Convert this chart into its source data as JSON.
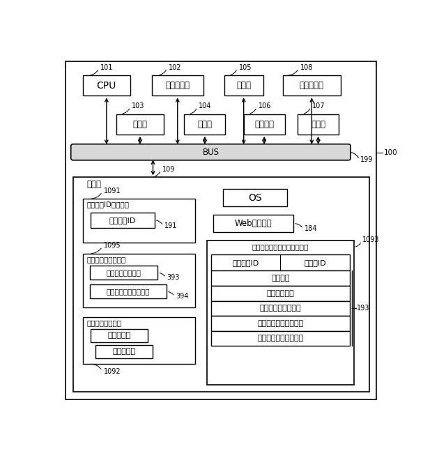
{
  "fig_width": 6.4,
  "fig_height": 6.57,
  "bg_color": "#ffffff",
  "labels": {
    "101": "CPU",
    "102": "入力検知部",
    "105": "マイク",
    "108": "無線通信部",
    "103": "表示部",
    "104": "カメラ",
    "106": "スピーカ",
    "107": "電源部",
    "bus": "BUS",
    "memory": "記憶部",
    "os_label": "OS",
    "web": "Webブラウザ",
    "device_id_area": "デバイスID格納領域",
    "device_id_box": "デバイスID",
    "content_area": "コンテンツ格納領域",
    "content_data": "コンテンツデータ",
    "content_mgmt": "コンテンツ管理データ",
    "viewer_area": "ビュワー格納領域",
    "viewer1": "ビュワー１",
    "viewer2": "ビュワー２",
    "app_area": "電子書籍管理アプリ格納領域",
    "device_id2": "デバイスID",
    "user_id": "ユーザID",
    "mgmt": "管理機能",
    "reg": "登録設定機能",
    "get_content": "コンテンツ取得機能",
    "lend": "コンテンツ貸出し機能",
    "borrow": "コンテンツ借入れ機能"
  }
}
